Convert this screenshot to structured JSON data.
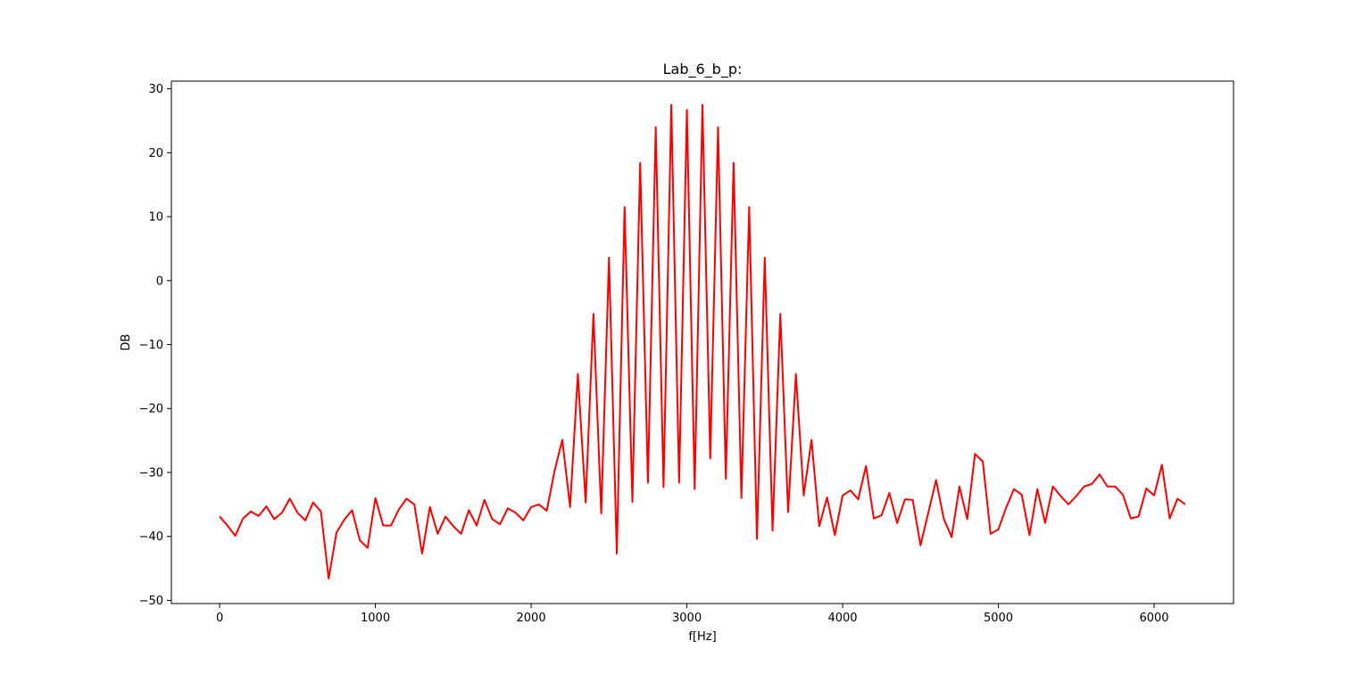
{
  "chart_data": {
    "type": "line",
    "title": "Lab_6_b_p:",
    "xlabel": "f[Hz]",
    "ylabel": "DB",
    "xlim": [
      -310,
      6510
    ],
    "ylim": [
      -50.5,
      31.2
    ],
    "xticks": [
      0,
      1000,
      2000,
      3000,
      4000,
      5000,
      6000
    ],
    "yticks": [
      -50,
      -40,
      -30,
      -20,
      -10,
      0,
      10,
      20,
      30
    ],
    "xtick_labels": [
      "0",
      "1000",
      "2000",
      "3000",
      "4000",
      "5000",
      "6000"
    ],
    "ytick_labels": [
      "−50",
      "−40",
      "−30",
      "−20",
      "−10",
      "0",
      "10",
      "20",
      "30"
    ],
    "grid": false,
    "legend": "none",
    "series": [
      {
        "color": "#ff0000",
        "x": [
          0,
          50,
          100,
          150,
          200,
          250,
          300,
          350,
          400,
          450,
          500,
          550,
          600,
          650,
          700,
          750,
          800,
          850,
          900,
          950,
          1000,
          1050,
          1100,
          1150,
          1200,
          1250,
          1300,
          1350,
          1400,
          1450,
          1500,
          1550,
          1600,
          1650,
          1700,
          1750,
          1800,
          1850,
          1900,
          1950,
          2000,
          2050,
          2100,
          2150,
          2200,
          2250,
          2300,
          2350,
          2400,
          2450,
          2500,
          2550,
          2600,
          2650,
          2700,
          2750,
          2800,
          2850,
          2900,
          2950,
          3000,
          3050,
          3100,
          3150,
          3200,
          3250,
          3300,
          3350,
          3400,
          3450,
          3500,
          3550,
          3600,
          3650,
          3700,
          3750,
          3800,
          3850,
          3900,
          3950,
          4000,
          4050,
          4100,
          4150,
          4200,
          4250,
          4300,
          4350,
          4400,
          4450,
          4500,
          4550,
          4600,
          4650,
          4700,
          4750,
          4800,
          4850,
          4900,
          4950,
          5000,
          5050,
          5100,
          5150,
          5200,
          5250,
          5300,
          5350,
          5400,
          5450,
          5500,
          5550,
          5600,
          5650,
          5700,
          5750,
          5800,
          5850,
          5900,
          5950,
          6000,
          6050,
          6100,
          6150,
          6200
        ],
        "y": [
          -36.9,
          -38.3,
          -39.9,
          -37.2,
          -36.1,
          -36.8,
          -35.3,
          -37.3,
          -36.3,
          -34.1,
          -36.3,
          -37.5,
          -34.7,
          -36.1,
          -46.6,
          -39.4,
          -37.4,
          -35.9,
          -40.6,
          -41.8,
          -34.0,
          -38.3,
          -38.3,
          -35.8,
          -34.1,
          -35.0,
          -42.7,
          -35.4,
          -39.6,
          -36.9,
          -38.4,
          -39.6,
          -35.9,
          -38.3,
          -34.3,
          -37.3,
          -38.1,
          -35.6,
          -36.3,
          -37.5,
          -35.4,
          -35.0,
          -36.0,
          -29.8,
          -24.9,
          -35.4,
          -14.6,
          -34.7,
          -5.2,
          -36.4,
          3.6,
          -42.7,
          11.5,
          -34.6,
          18.4,
          -31.6,
          24.0,
          -32.3,
          27.5,
          -31.6,
          26.7,
          -32.6,
          27.5,
          -27.8,
          24.0,
          -31.0,
          18.4,
          -34.0,
          11.5,
          -40.4,
          3.6,
          -39.1,
          -5.2,
          -36.2,
          -14.6,
          -33.6,
          -24.9,
          -38.4,
          -33.9,
          -39.8,
          -33.6,
          -32.8,
          -34.2,
          -29.0,
          -37.2,
          -36.7,
          -33.2,
          -37.9,
          -34.2,
          -34.3,
          -41.4,
          -36.3,
          -31.2,
          -37.3,
          -40.1,
          -32.2,
          -37.3,
          -27.1,
          -28.3,
          -39.6,
          -38.9,
          -35.5,
          -32.6,
          -33.5,
          -39.8,
          -32.6,
          -37.9,
          -32.2,
          -33.7,
          -35.0,
          -33.7,
          -32.2,
          -31.8,
          -30.3,
          -32.2,
          -32.2,
          -33.5,
          -37.2,
          -36.9,
          -32.5,
          -33.6,
          -28.8,
          -37.2,
          -34.1,
          -35.0
        ]
      }
    ]
  }
}
